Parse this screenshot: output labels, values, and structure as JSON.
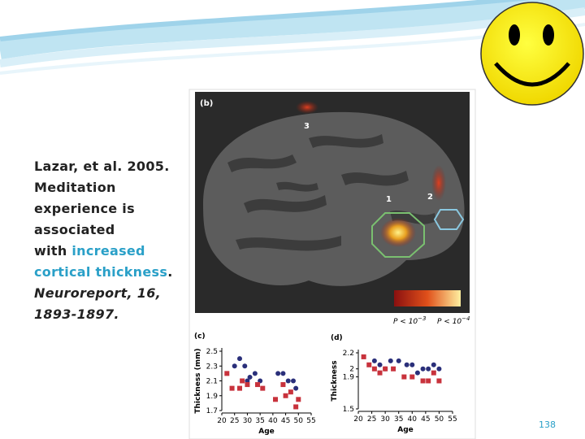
{
  "slide": {
    "lines": [
      [
        "Lazar, et al. 2005."
      ],
      [
        "Meditation"
      ],
      [
        "experience is"
      ],
      [
        "associated"
      ],
      [
        "with ",
        "increased"
      ],
      [
        "cortical thickness",
        "."
      ],
      [
        "Neuroreport, 16,"
      ],
      [
        "1893-1897."
      ]
    ],
    "page_number": 138,
    "figure": {
      "panel_label": "(b)",
      "region_labels": [
        "3",
        "1",
        "2"
      ],
      "p_labels": [
        {
          "base": "P < 10",
          "exp": "−3"
        },
        {
          "base": "P < 10",
          "exp": "−4"
        }
      ]
    }
  },
  "chart_data": [
    {
      "type": "scatter",
      "panel_label": "(c)",
      "x_label": "Age",
      "y_label": "Thickness (mm)",
      "xlim": [
        20,
        55
      ],
      "ylim": [
        1.7,
        2.5
      ],
      "xticks": [
        20,
        25,
        30,
        35,
        40,
        45,
        50,
        55
      ],
      "yticks": [
        2.5,
        2.3,
        2.1,
        1.9,
        1.7
      ],
      "series": [
        {
          "color": "#2a2f7a",
          "marker": "circle",
          "x": [
            25,
            27,
            29,
            30,
            31,
            33,
            35,
            42,
            44,
            46,
            48,
            49
          ],
          "values": [
            2.3,
            2.4,
            2.3,
            2.1,
            2.15,
            2.2,
            2.1,
            2.2,
            2.2,
            2.1,
            2.1,
            2.0
          ]
        },
        {
          "color": "#c8323c",
          "marker": "square",
          "x": [
            22,
            24,
            27,
            28,
            30,
            34,
            36,
            41,
            44,
            45,
            47,
            49,
            50
          ],
          "values": [
            2.2,
            2.0,
            2.0,
            2.1,
            2.05,
            2.05,
            2.0,
            1.85,
            2.05,
            1.9,
            1.95,
            1.75,
            1.85
          ]
        }
      ]
    },
    {
      "type": "scatter",
      "panel_label": "(d)",
      "x_label": "Age",
      "y_label": "Thickness",
      "xlim": [
        20,
        55
      ],
      "ylim": [
        1.5,
        2.2
      ],
      "xticks": [
        20,
        25,
        30,
        35,
        40,
        45,
        50,
        55
      ],
      "yticks": [
        2.2,
        2,
        1.9,
        1.5
      ],
      "series": [
        {
          "color": "#2a2f7a",
          "marker": "circle",
          "x": [
            26,
            28,
            30,
            32,
            35,
            38,
            40,
            42,
            44,
            46,
            48,
            50
          ],
          "values": [
            2.1,
            2.05,
            2.0,
            2.1,
            2.1,
            2.05,
            2.05,
            1.95,
            2.0,
            2.0,
            2.05,
            2.0
          ]
        },
        {
          "color": "#c8323c",
          "marker": "square",
          "x": [
            22,
            24,
            26,
            28,
            30,
            33,
            37,
            40,
            44,
            46,
            48,
            50
          ],
          "values": [
            2.15,
            2.05,
            2.0,
            1.95,
            2.0,
            2.0,
            1.9,
            1.9,
            1.85,
            1.85,
            1.95,
            1.85
          ]
        }
      ]
    }
  ]
}
